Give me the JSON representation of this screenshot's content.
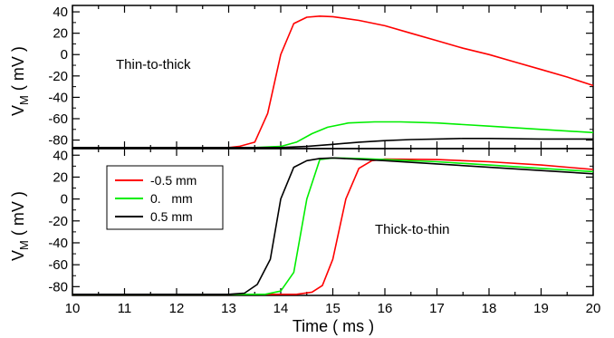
{
  "chart_data": [
    {
      "type": "line",
      "panel": "top",
      "annotation": "Thin-to-thick",
      "ylabel_main": "V",
      "ylabel_sub": "M",
      "ylabel_unit": " ( mV )",
      "xlim": [
        10,
        20
      ],
      "ylim": [
        -88,
        46
      ],
      "yticks": [
        40,
        20,
        0,
        -20,
        -40,
        -60,
        -80
      ],
      "series": [
        {
          "color": "#ff0000",
          "x": [
            10,
            12,
            13.0,
            13.2,
            13.5,
            13.75,
            14.0,
            14.25,
            14.5,
            14.75,
            15.0,
            15.5,
            16,
            16.5,
            17,
            17.5,
            18,
            18.5,
            19,
            19.5,
            20
          ],
          "y": [
            -87,
            -87,
            -87,
            -86,
            -82,
            -55,
            0,
            29,
            35,
            36,
            35.5,
            32,
            27,
            20,
            13,
            6,
            0,
            -7,
            -14,
            -21,
            -29
          ]
        },
        {
          "color": "#00ee00",
          "x": [
            10,
            13.5,
            14.0,
            14.3,
            14.6,
            14.9,
            15.3,
            15.8,
            16.3,
            17,
            18,
            19,
            20
          ],
          "y": [
            -87,
            -87,
            -86,
            -82,
            -74,
            -68,
            -64,
            -63,
            -63,
            -64,
            -67,
            -70,
            -73
          ]
        },
        {
          "color": "#000000",
          "x": [
            10,
            14.0,
            14.5,
            15,
            15.5,
            16,
            16.5,
            17,
            17.5,
            18,
            19,
            20
          ],
          "y": [
            -87,
            -87,
            -86,
            -84,
            -82,
            -80.5,
            -79.5,
            -79,
            -78.5,
            -78.5,
            -79,
            -79
          ]
        }
      ]
    },
    {
      "type": "line",
      "panel": "bottom",
      "annotation": "Thick-to-thin",
      "ylabel_main": "V",
      "ylabel_sub": "M",
      "ylabel_unit": " ( mV )",
      "xlabel": "Time ( ms )",
      "xlim": [
        10,
        20
      ],
      "ylim": [
        -88,
        46
      ],
      "yticks": [
        40,
        20,
        0,
        -20,
        -40,
        -60,
        -80
      ],
      "xticks": [
        10,
        11,
        12,
        13,
        14,
        15,
        16,
        17,
        18,
        19,
        20
      ],
      "legend_position": "top-left",
      "series": [
        {
          "name": "-0.5 mm",
          "color": "#ff0000",
          "x": [
            10,
            14.3,
            14.6,
            14.8,
            15.0,
            15.25,
            15.5,
            15.75,
            16,
            17,
            18,
            19,
            20
          ],
          "y": [
            -87,
            -87,
            -85,
            -79,
            -55,
            0,
            28,
            35,
            36.5,
            36,
            34,
            31,
            27
          ]
        },
        {
          "name": "0.   mm",
          "color": "#00ee00",
          "x": [
            10,
            13.7,
            14.0,
            14.25,
            14.5,
            14.75,
            15.0,
            15.5,
            16,
            17,
            18,
            19,
            20
          ],
          "y": [
            -87,
            -87,
            -84,
            -67,
            0,
            36,
            37.5,
            37,
            36,
            34,
            31,
            28,
            25
          ]
        },
        {
          "name": "0.5 mm",
          "color": "#000000",
          "x": [
            10,
            13.0,
            13.3,
            13.55,
            13.8,
            14.0,
            14.25,
            14.5,
            14.75,
            15,
            16,
            17,
            18,
            19,
            20
          ],
          "y": [
            -87,
            -87,
            -86,
            -78,
            -55,
            0,
            29,
            35,
            37,
            37.5,
            35,
            32,
            29,
            26,
            23
          ]
        }
      ]
    }
  ]
}
